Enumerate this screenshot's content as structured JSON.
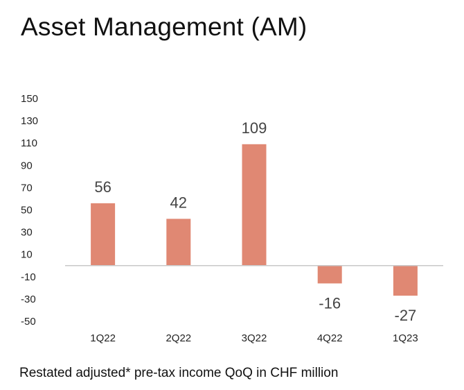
{
  "title": "Asset Management (AM)",
  "caption": "Restated adjusted* pre-tax income QoQ in CHF million",
  "colors": {
    "bar": "#e08873",
    "axis": "#c8c8c8"
  },
  "chart_data": {
    "type": "bar",
    "title": "Asset Management (AM)",
    "categories": [
      "1Q22",
      "2Q22",
      "3Q22",
      "4Q22",
      "1Q23"
    ],
    "values": [
      56,
      42,
      109,
      -16,
      -27
    ],
    "data_labels": [
      "56",
      "42",
      "109",
      "-16",
      "-27"
    ],
    "ylim": [
      -50,
      150
    ],
    "yticks": [
      150,
      130,
      110,
      90,
      70,
      50,
      30,
      10,
      -10,
      -30,
      -50
    ],
    "grid": false,
    "xlabel": "",
    "ylabel": "",
    "legend": "none"
  }
}
